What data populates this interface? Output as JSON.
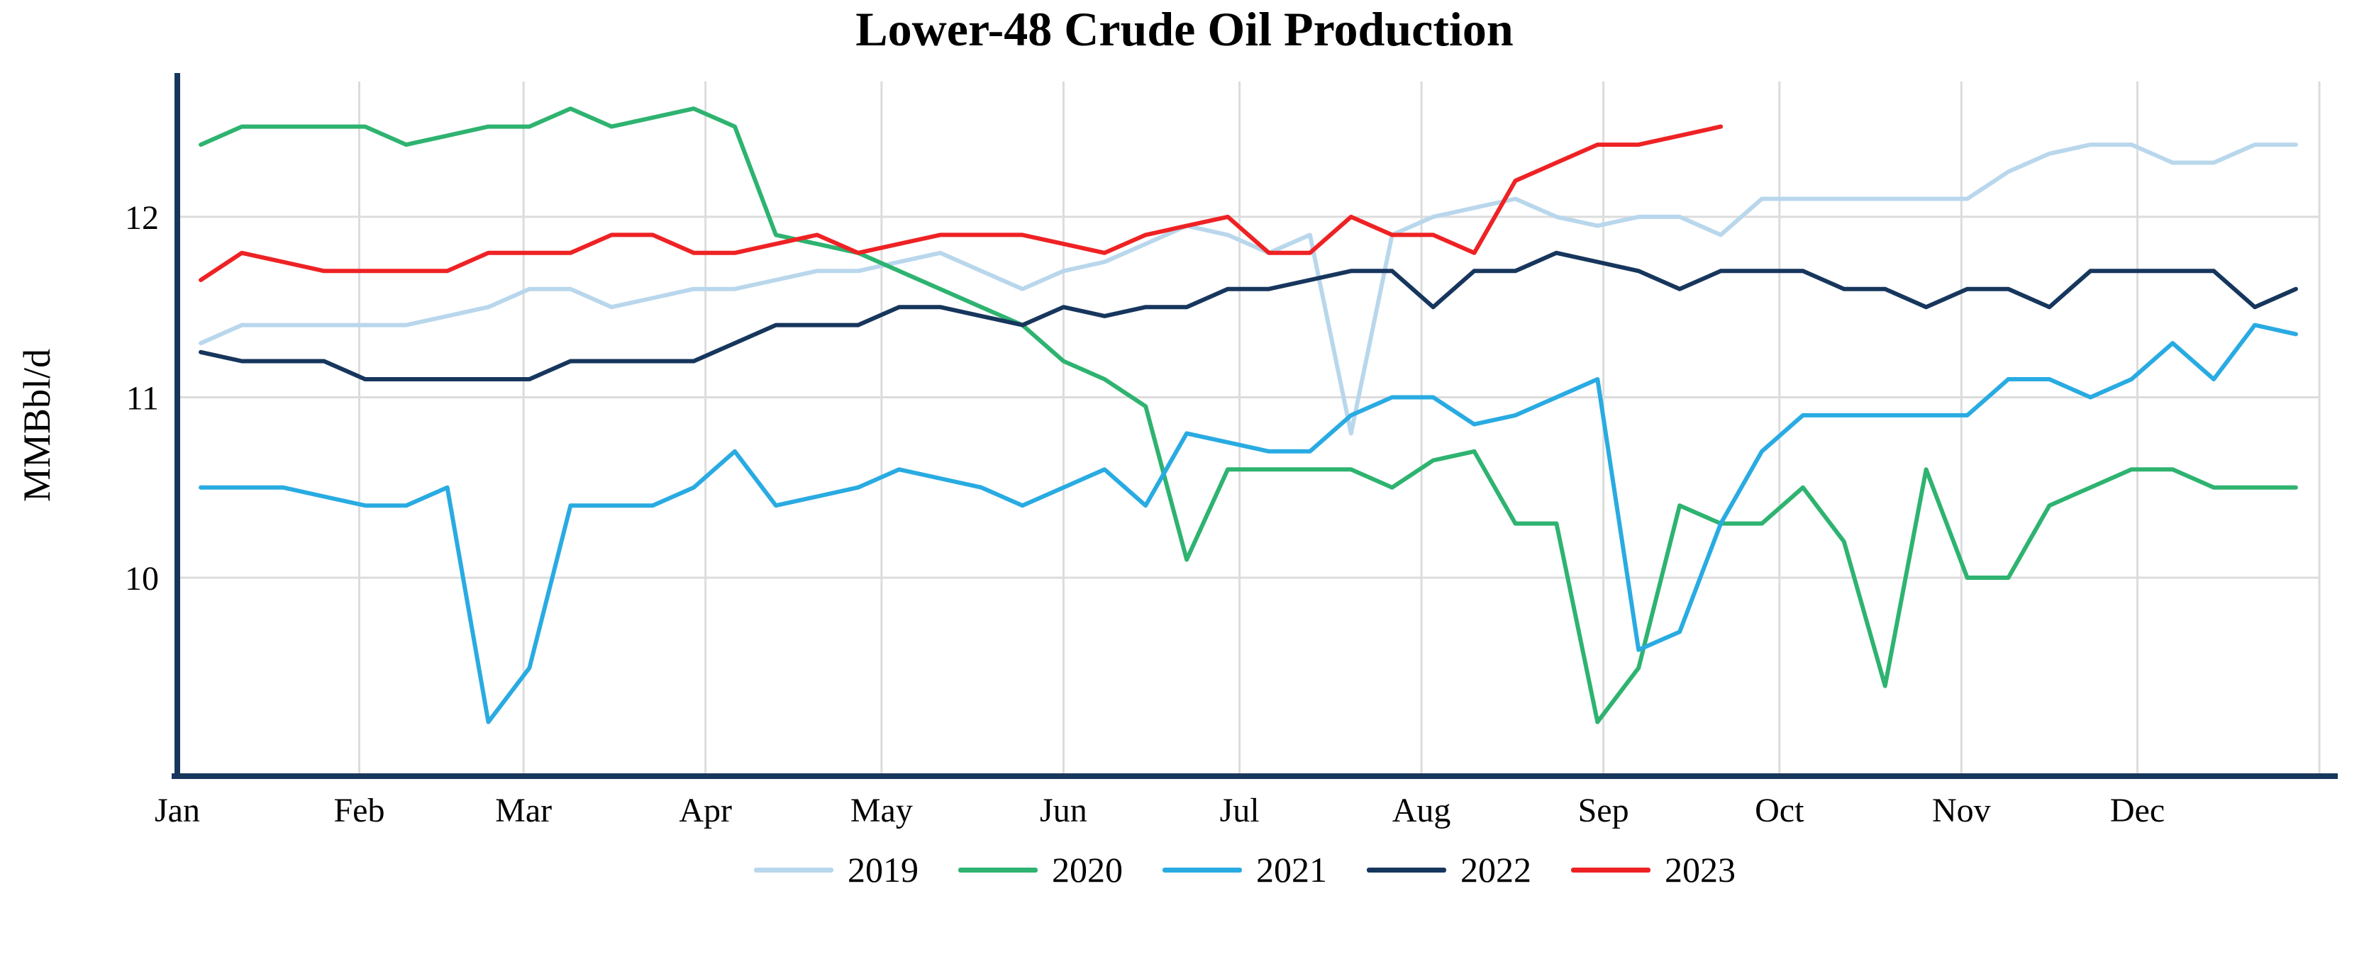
{
  "chart_data": {
    "type": "line",
    "title": "Lower-48 Crude Oil Production",
    "xlabel": "",
    "ylabel": "MMBbl/d",
    "x_unit": "weekly",
    "x_tick_labels": [
      "Jan",
      "Feb",
      "Mar",
      "Apr",
      "May",
      "Jun",
      "Jul",
      "Aug",
      "Sep",
      "Oct",
      "Nov",
      "Dec"
    ],
    "x_tick_days": [
      0,
      31,
      59,
      90,
      120,
      151,
      181,
      212,
      243,
      273,
      304,
      334
    ],
    "x_mode": {
      "start_day": 4,
      "step_days": 7,
      "days_in_year": 365
    },
    "y_ticks": [
      10,
      11,
      12
    ],
    "ylim": [
      8.9,
      12.75
    ],
    "grid": true,
    "legend_position": "bottom",
    "series": [
      {
        "name": "2019",
        "color": "#b9d7ec",
        "values": [
          11.3,
          11.4,
          11.4,
          11.4,
          11.4,
          11.4,
          11.45,
          11.5,
          11.6,
          11.6,
          11.5,
          11.55,
          11.6,
          11.6,
          11.65,
          11.7,
          11.7,
          11.75,
          11.8,
          11.7,
          11.6,
          11.7,
          11.75,
          11.85,
          11.95,
          11.9,
          11.8,
          11.9,
          10.8,
          11.9,
          12.0,
          12.05,
          12.1,
          12.0,
          11.95,
          12.0,
          12.0,
          11.9,
          12.1,
          12.1,
          12.1,
          12.1,
          12.1,
          12.1,
          12.25,
          12.35,
          12.4,
          12.4,
          12.3,
          12.3,
          12.4,
          12.4
        ]
      },
      {
        "name": "2020",
        "color": "#2eb370",
        "values": [
          12.4,
          12.5,
          12.5,
          12.5,
          12.5,
          12.4,
          12.45,
          12.5,
          12.5,
          12.6,
          12.5,
          12.55,
          12.6,
          12.5,
          11.9,
          11.85,
          11.8,
          11.7,
          11.6,
          11.5,
          11.4,
          11.2,
          11.1,
          10.95,
          10.1,
          10.6,
          10.6,
          10.6,
          10.6,
          10.5,
          10.65,
          10.7,
          10.3,
          10.3,
          9.2,
          9.5,
          10.4,
          10.3,
          10.3,
          10.5,
          10.2,
          9.4,
          10.6,
          10.0,
          10.0,
          10.4,
          10.5,
          10.6,
          10.6,
          10.5,
          10.5,
          10.5
        ]
      },
      {
        "name": "2021",
        "color": "#29abe2",
        "values": [
          10.5,
          10.5,
          10.5,
          10.45,
          10.4,
          10.4,
          10.5,
          9.2,
          9.5,
          10.4,
          10.4,
          10.4,
          10.5,
          10.7,
          10.4,
          10.45,
          10.5,
          10.6,
          10.55,
          10.5,
          10.4,
          10.5,
          10.6,
          10.4,
          10.8,
          10.75,
          10.7,
          10.7,
          10.9,
          11.0,
          11.0,
          10.85,
          10.9,
          11.0,
          11.1,
          9.6,
          9.7,
          10.3,
          10.7,
          10.9,
          10.9,
          10.9,
          10.9,
          10.9,
          11.1,
          11.1,
          11.0,
          11.1,
          11.3,
          11.1,
          11.4,
          11.35
        ]
      },
      {
        "name": "2022",
        "color": "#17365d",
        "values": [
          11.25,
          11.2,
          11.2,
          11.2,
          11.1,
          11.1,
          11.1,
          11.1,
          11.1,
          11.2,
          11.2,
          11.2,
          11.2,
          11.3,
          11.4,
          11.4,
          11.4,
          11.5,
          11.5,
          11.45,
          11.4,
          11.5,
          11.45,
          11.5,
          11.5,
          11.6,
          11.6,
          11.65,
          11.7,
          11.7,
          11.5,
          11.7,
          11.7,
          11.8,
          11.75,
          11.7,
          11.6,
          11.7,
          11.7,
          11.7,
          11.6,
          11.6,
          11.5,
          11.6,
          11.6,
          11.5,
          11.7,
          11.7,
          11.7,
          11.7,
          11.5,
          11.6
        ]
      },
      {
        "name": "2023",
        "color": "#ee2224",
        "values": [
          11.65,
          11.8,
          11.75,
          11.7,
          11.7,
          11.7,
          11.7,
          11.8,
          11.8,
          11.8,
          11.9,
          11.9,
          11.8,
          11.8,
          11.85,
          11.9,
          11.8,
          11.85,
          11.9,
          11.9,
          11.9,
          11.85,
          11.8,
          11.9,
          11.95,
          12.0,
          11.8,
          11.8,
          12.0,
          11.9,
          11.9,
          11.8,
          12.2,
          12.3,
          12.4,
          12.4,
          12.45,
          12.5
        ]
      }
    ]
  },
  "colors": {
    "axis": "#17365d",
    "grid": "#dcdcdc",
    "text": "#000000",
    "background": "#ffffff"
  }
}
